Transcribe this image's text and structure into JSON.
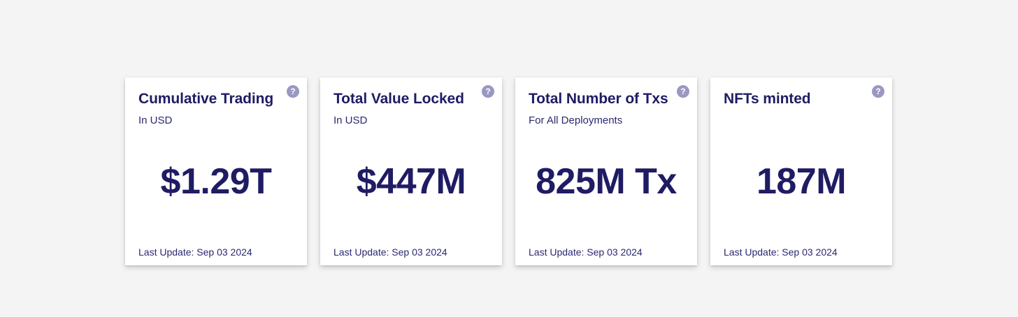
{
  "theme": {
    "background": "#f4f4f4",
    "card_background": "#ffffff",
    "text_color": "#1f1c64",
    "help_icon_color": "#9a98c2"
  },
  "help_icon": {
    "glyph": "?",
    "icon_name": "question-mark-circle-icon"
  },
  "cards": [
    {
      "title": "Cumulative Trading",
      "subtitle": "In USD",
      "value": "$1.29T",
      "footer": "Last Update: Sep 03 2024"
    },
    {
      "title": "Total Value Locked",
      "subtitle": "In USD",
      "value": "$447M",
      "footer": "Last Update: Sep 03 2024"
    },
    {
      "title": "Total Number of Txs",
      "subtitle": "For All Deployments",
      "value": "825M Tx",
      "footer": "Last Update: Sep 03 2024"
    },
    {
      "title": "NFTs minted",
      "subtitle": "",
      "value": "187M",
      "footer": "Last Update: Sep 03 2024"
    }
  ]
}
